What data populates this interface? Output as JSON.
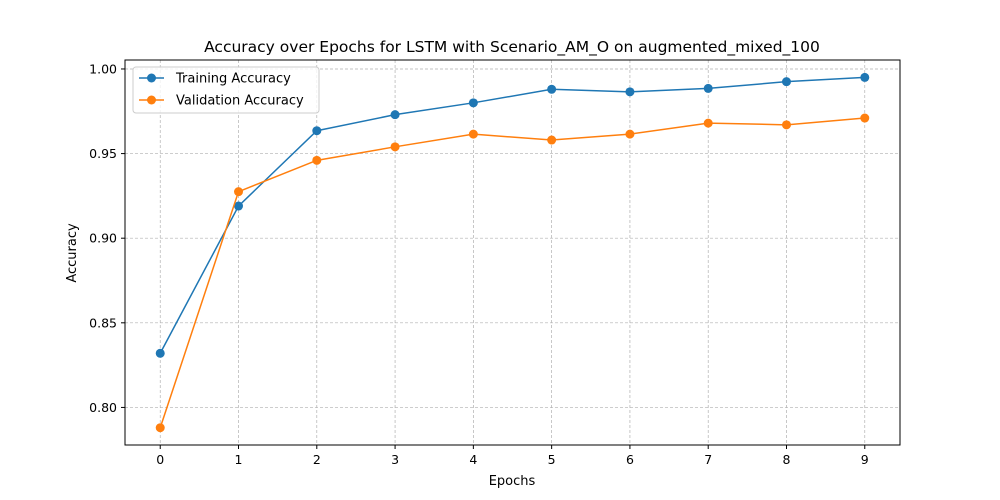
{
  "chart_data": {
    "type": "line",
    "title": "Accuracy over Epochs for LSTM with Scenario_AM_O on augmented_mixed_100",
    "xlabel": "Epochs",
    "ylabel": "Accuracy",
    "x": [
      0,
      1,
      2,
      3,
      4,
      5,
      6,
      7,
      8,
      9
    ],
    "xticks": [
      "0",
      "1",
      "2",
      "3",
      "4",
      "5",
      "6",
      "7",
      "8",
      "9"
    ],
    "yticks": [
      "0.80",
      "0.85",
      "0.90",
      "0.95",
      "1.00"
    ],
    "ytick_values": [
      0.8,
      0.85,
      0.9,
      0.95,
      1.0
    ],
    "xlim": [
      -0.45,
      9.45
    ],
    "ylim": [
      0.7778,
      1.0053
    ],
    "grid": true,
    "legend_position": "upper-left",
    "series": [
      {
        "name": "Training Accuracy",
        "color": "#1f77b4",
        "marker": "circle",
        "values": [
          0.832,
          0.919,
          0.9635,
          0.973,
          0.98,
          0.988,
          0.9865,
          0.9885,
          0.9925,
          0.995
        ]
      },
      {
        "name": "Validation Accuracy",
        "color": "#ff7f0e",
        "marker": "circle",
        "values": [
          0.788,
          0.9275,
          0.946,
          0.954,
          0.9615,
          0.958,
          0.9615,
          0.968,
          0.967,
          0.971
        ]
      }
    ]
  }
}
